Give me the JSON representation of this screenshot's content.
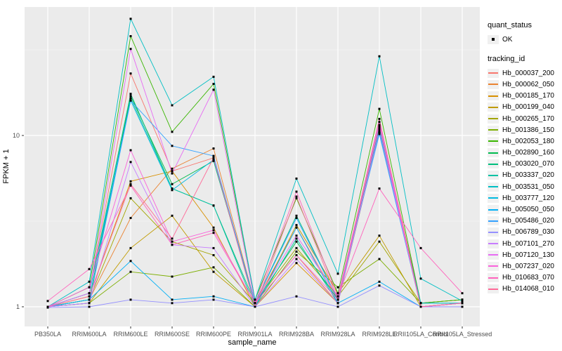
{
  "figure": {
    "bg": "#FFFFFF",
    "panel_bg": "#EBEBEB",
    "grid_color": "#FFFFFF",
    "tick_label_color": "#4D4D4D",
    "tick_mark_color": "#333333",
    "point_color": "#000000"
  },
  "legend": {
    "quant_status_title": "quant_status",
    "quant_status_items": [
      "OK"
    ],
    "tracking_id_title": "tracking_id",
    "key_bg": "#F0F0F0",
    "marker_color": "#000000"
  },
  "chart_data": {
    "type": "line",
    "title": "",
    "xlabel": "sample_name",
    "ylabel": "FPKM + 1",
    "y_scale": "log10",
    "ylim": [
      0.77,
      56
    ],
    "grid": "on",
    "legend_position": "right",
    "yticks": [
      {
        "label": "10",
        "value": 10
      },
      {
        "label": "1",
        "value": 1
      }
    ],
    "y_minor": [
      3.162,
      31.62
    ],
    "point_marker": "black-square",
    "quant_status": {
      "label": "OK",
      "applies_to": "all points"
    },
    "categories": [
      "PB350LA",
      "RRIM600LA",
      "RRIM600LE",
      "RRIM600SE",
      "RRIM600PE",
      "RRIM901LA",
      "RRIM928BA",
      "RRIM928LA",
      "RRIM928LE",
      "RRII105LA_Control",
      "RRII105LA_Stressed"
    ],
    "series": [
      {
        "name": "Hb_000037_200",
        "color": "#F8766D",
        "values": [
          1.0,
          1.2,
          23.0,
          6.2,
          7.4,
          1.05,
          2.9,
          1.1,
          12.0,
          1.05,
          1.1
        ]
      },
      {
        "name": "Hb_000062_050",
        "color": "#EA8331",
        "values": [
          1.0,
          1.1,
          3.3,
          6.4,
          8.4,
          1.05,
          2.0,
          1.05,
          11.0,
          1.0,
          1.05
        ]
      },
      {
        "name": "Hb_000185_170",
        "color": "#D89000",
        "values": [
          1.0,
          1.15,
          5.4,
          6.2,
          2.9,
          1.0,
          1.8,
          1.05,
          10.5,
          1.0,
          1.05
        ]
      },
      {
        "name": "Hb_000199_040",
        "color": "#C09B00",
        "values": [
          1.0,
          1.05,
          2.2,
          3.4,
          1.6,
          1.0,
          3.0,
          1.2,
          2.6,
          1.0,
          1.0
        ]
      },
      {
        "name": "Hb_000265_170",
        "color": "#A3A500",
        "values": [
          1.0,
          1.1,
          4.3,
          2.4,
          2.0,
          1.05,
          2.2,
          1.15,
          2.4,
          1.05,
          1.1
        ]
      },
      {
        "name": "Hb_001386_150",
        "color": "#7CAE00",
        "values": [
          1.0,
          1.05,
          1.6,
          1.5,
          1.7,
          1.0,
          2.1,
          1.3,
          1.9,
          1.05,
          1.1
        ]
      },
      {
        "name": "Hb_002053_180",
        "color": "#39B600",
        "values": [
          1.0,
          1.3,
          38.0,
          10.5,
          20.0,
          1.1,
          4.3,
          1.2,
          14.3,
          1.05,
          1.1
        ]
      },
      {
        "name": "Hb_002890_160",
        "color": "#00BB4E",
        "values": [
          1.0,
          1.1,
          17.0,
          5.2,
          7.1,
          1.05,
          2.4,
          1.1,
          11.5,
          1.05,
          1.05
        ]
      },
      {
        "name": "Hb_003020_070",
        "color": "#00BF7D",
        "values": [
          1.0,
          1.2,
          17.5,
          4.9,
          3.9,
          1.05,
          3.4,
          1.1,
          11.2,
          1.0,
          1.05
        ]
      },
      {
        "name": "Hb_003337_020",
        "color": "#00C1A3",
        "values": [
          1.0,
          1.1,
          16.5,
          4.9,
          3.9,
          1.0,
          2.5,
          1.05,
          10.8,
          1.0,
          1.05
        ]
      },
      {
        "name": "Hb_003531_050",
        "color": "#00BFC4",
        "values": [
          1.0,
          1.4,
          48.0,
          15.0,
          22.0,
          1.1,
          5.6,
          1.56,
          29.0,
          1.46,
          1.08
        ]
      },
      {
        "name": "Hb_003777_120",
        "color": "#00BAE0",
        "values": [
          1.0,
          1.2,
          16.0,
          4.8,
          7.2,
          1.05,
          3.3,
          1.1,
          10.5,
          1.05,
          1.05
        ]
      },
      {
        "name": "Hb_005050_050",
        "color": "#00B0F6",
        "values": [
          1.0,
          1.1,
          1.85,
          1.1,
          1.15,
          1.0,
          2.9,
          1.05,
          1.4,
          1.0,
          1.05
        ]
      },
      {
        "name": "Hb_005486_020",
        "color": "#35A2FF",
        "values": [
          1.0,
          1.05,
          16.0,
          8.7,
          7.6,
          1.05,
          3.3,
          1.1,
          10.2,
          1.0,
          1.05
        ]
      },
      {
        "name": "Hb_006789_030",
        "color": "#9590FF",
        "values": [
          0.99,
          1.0,
          1.1,
          1.05,
          1.1,
          1.0,
          1.15,
          1.0,
          1.33,
          1.0,
          1.0
        ]
      },
      {
        "name": "Hb_007101_270",
        "color": "#C77CFF",
        "values": [
          1.0,
          1.05,
          7.0,
          2.3,
          2.2,
          1.0,
          1.9,
          1.05,
          10.8,
          1.0,
          1.05
        ]
      },
      {
        "name": "Hb_007120_130",
        "color": "#E76BF3",
        "values": [
          1.0,
          1.2,
          32.0,
          6.0,
          18.5,
          1.05,
          2.6,
          1.15,
          12.0,
          1.0,
          1.05
        ]
      },
      {
        "name": "Hb_007237_020",
        "color": "#FA62DB",
        "values": [
          1.0,
          1.3,
          8.2,
          2.4,
          2.8,
          1.05,
          2.0,
          1.1,
          11.5,
          1.0,
          1.05
        ]
      },
      {
        "name": "Hb_010683_070",
        "color": "#FF62BC",
        "values": [
          1.08,
          1.66,
          5.1,
          2.3,
          2.7,
          1.05,
          4.7,
          1.15,
          4.9,
          2.2,
          1.2
        ]
      },
      {
        "name": "Hb_014068_010",
        "color": "#FF6A98",
        "values": [
          1.0,
          1.15,
          5.2,
          2.5,
          7.4,
          1.0,
          4.4,
          1.1,
          12.5,
          1.0,
          1.05
        ]
      }
    ]
  }
}
